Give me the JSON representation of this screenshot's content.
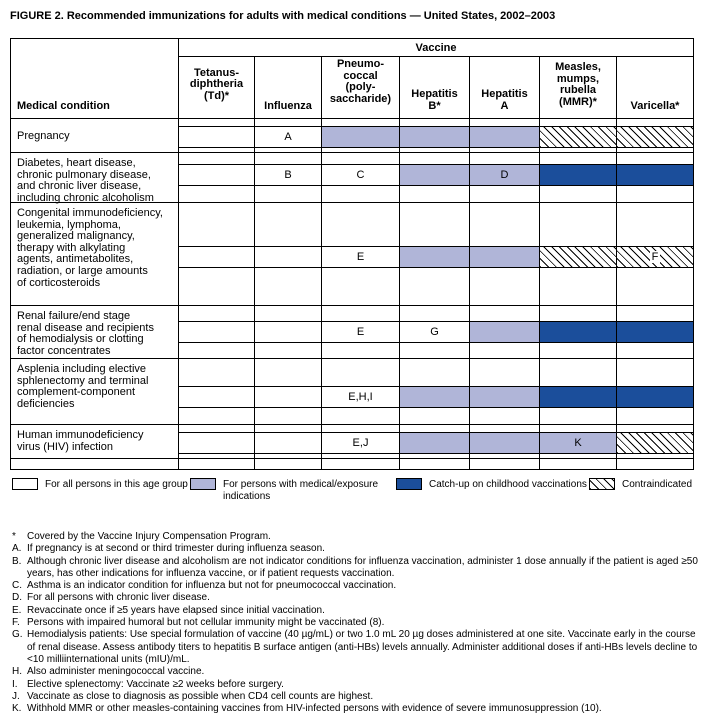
{
  "title": "FIGURE 2. Recommended immunizations for adults with medical conditions — United States, 2002–2003",
  "table": {
    "vaccine_header": "Vaccine",
    "condition_header": "Medical condition",
    "columns": [
      "Tetanus-\ndiphtheria\n(Td)*",
      "Influenza",
      "Pneumo-\ncoccal\n(poly-\nsaccharide)",
      "Hepatitis\nB*",
      "Hepatitis\nA",
      "Measles,\nmumps,\nrubella\n(MMR)*",
      "Varicella*"
    ],
    "rows": [
      {
        "condition": "Pregnancy",
        "cells": [
          {
            "type": "blank"
          },
          {
            "type": "blank",
            "label": "A"
          },
          {
            "type": "medical"
          },
          {
            "type": "medical"
          },
          {
            "type": "medical"
          },
          {
            "type": "contra"
          },
          {
            "type": "contra"
          }
        ]
      },
      {
        "condition": "Diabetes, heart disease,\nchronic pulmonary disease,\nand chronic liver disease,\nincluding chronic alcoholism",
        "cells": [
          {
            "type": "blank"
          },
          {
            "type": "blank",
            "label": "B"
          },
          {
            "type": "blank",
            "label": "C"
          },
          {
            "type": "medical"
          },
          {
            "type": "medical",
            "label": "D"
          },
          {
            "type": "catchup"
          },
          {
            "type": "catchup"
          }
        ]
      },
      {
        "condition": "Congenital immunodeficiency,\nleukemia, lymphoma,\ngeneralized malignancy,\ntherapy with alkylating\nagents, antimetabolites,\nradiation, or large amounts\nof corticosteroids",
        "cells": [
          {
            "type": "blank"
          },
          {
            "type": "blank"
          },
          {
            "type": "blank",
            "label": "E"
          },
          {
            "type": "medical"
          },
          {
            "type": "medical"
          },
          {
            "type": "contra"
          },
          {
            "type": "contra",
            "label": "F"
          }
        ]
      },
      {
        "condition": "Renal failure/end stage\nrenal disease and recipients\nof hemodialysis or clotting\nfactor concentrates",
        "cells": [
          {
            "type": "blank"
          },
          {
            "type": "blank"
          },
          {
            "type": "blank",
            "label": "E"
          },
          {
            "type": "blank",
            "label": "G"
          },
          {
            "type": "medical"
          },
          {
            "type": "catchup"
          },
          {
            "type": "catchup"
          }
        ]
      },
      {
        "condition": "Asplenia including elective\nsphlenectomy and terminal\ncomplement-component\ndeficiencies",
        "cells": [
          {
            "type": "blank"
          },
          {
            "type": "blank"
          },
          {
            "type": "blank",
            "label": "E,H,I"
          },
          {
            "type": "medical"
          },
          {
            "type": "medical"
          },
          {
            "type": "catchup"
          },
          {
            "type": "catchup"
          }
        ]
      },
      {
        "condition": "Human immunodeficiency\nvirus (HIV) infection",
        "cells": [
          {
            "type": "blank"
          },
          {
            "type": "blank"
          },
          {
            "type": "blank",
            "label": "E,J"
          },
          {
            "type": "medical"
          },
          {
            "type": "medical"
          },
          {
            "type": "medical",
            "label": "K"
          },
          {
            "type": "contra"
          }
        ]
      }
    ]
  },
  "legend": [
    {
      "type": "blank",
      "label": "For all persons in this age group"
    },
    {
      "type": "medical",
      "label": "For persons with medical/exposure\nindications"
    },
    {
      "type": "catchup",
      "label": "Catch-up on childhood vaccinations"
    },
    {
      "type": "contra",
      "label": "Contraindicated"
    }
  ],
  "colors": {
    "medical_exposure": "#b0b5d8",
    "catch_up": "#1b4e9b",
    "border": "#000000"
  },
  "footnotes": [
    {
      "label": "*",
      "text": "Covered by the Vaccine Injury Compensation Program."
    },
    {
      "label": "A.",
      "text": "If pregnancy is at second or third trimester during influenza season."
    },
    {
      "label": "B.",
      "text": "Although chronic liver disease and alcoholism are not indicator conditions for influenza vaccination, administer 1 dose annually if the patient is aged ≥50 years, has other indications for influenza vaccine, or if patient requests vaccination."
    },
    {
      "label": "C.",
      "text": "Asthma is an indicator condition for influenza but not for pneumococcal vaccination."
    },
    {
      "label": "D.",
      "text": "For all persons with chronic liver disease."
    },
    {
      "label": "E.",
      "text": "Revaccinate once if ≥5 years have elapsed since initial vaccination."
    },
    {
      "label": "F.",
      "text": "Persons with impaired humoral but not cellular immunity might be vaccinated (8)."
    },
    {
      "label": "G.",
      "text": "Hemodialysis patients: Use special formulation of vaccine (40 µg/mL) or two 1.0 mL 20 µg doses administered at one site. Vaccinate early in the course of renal disease. Assess antibody titers to hepatitis B surface antigen (anti-HBs) levels annually. Administer additional doses if anti-HBs levels decline to <10 milliinternational units (mIU)/mL."
    },
    {
      "label": "H.",
      "text": "Also administer meningococcal vaccine."
    },
    {
      "label": "I.",
      "text": "Elective splenectomy: Vaccinate ≥2 weeks before surgery."
    },
    {
      "label": "J.",
      "text": "Vaccinate as close to diagnosis as possible when CD4 cell counts are highest."
    },
    {
      "label": "K.",
      "text": "Withhold MMR or other measles-containing vaccines from HIV-infected persons with evidence of severe immunosuppression (10)."
    }
  ]
}
